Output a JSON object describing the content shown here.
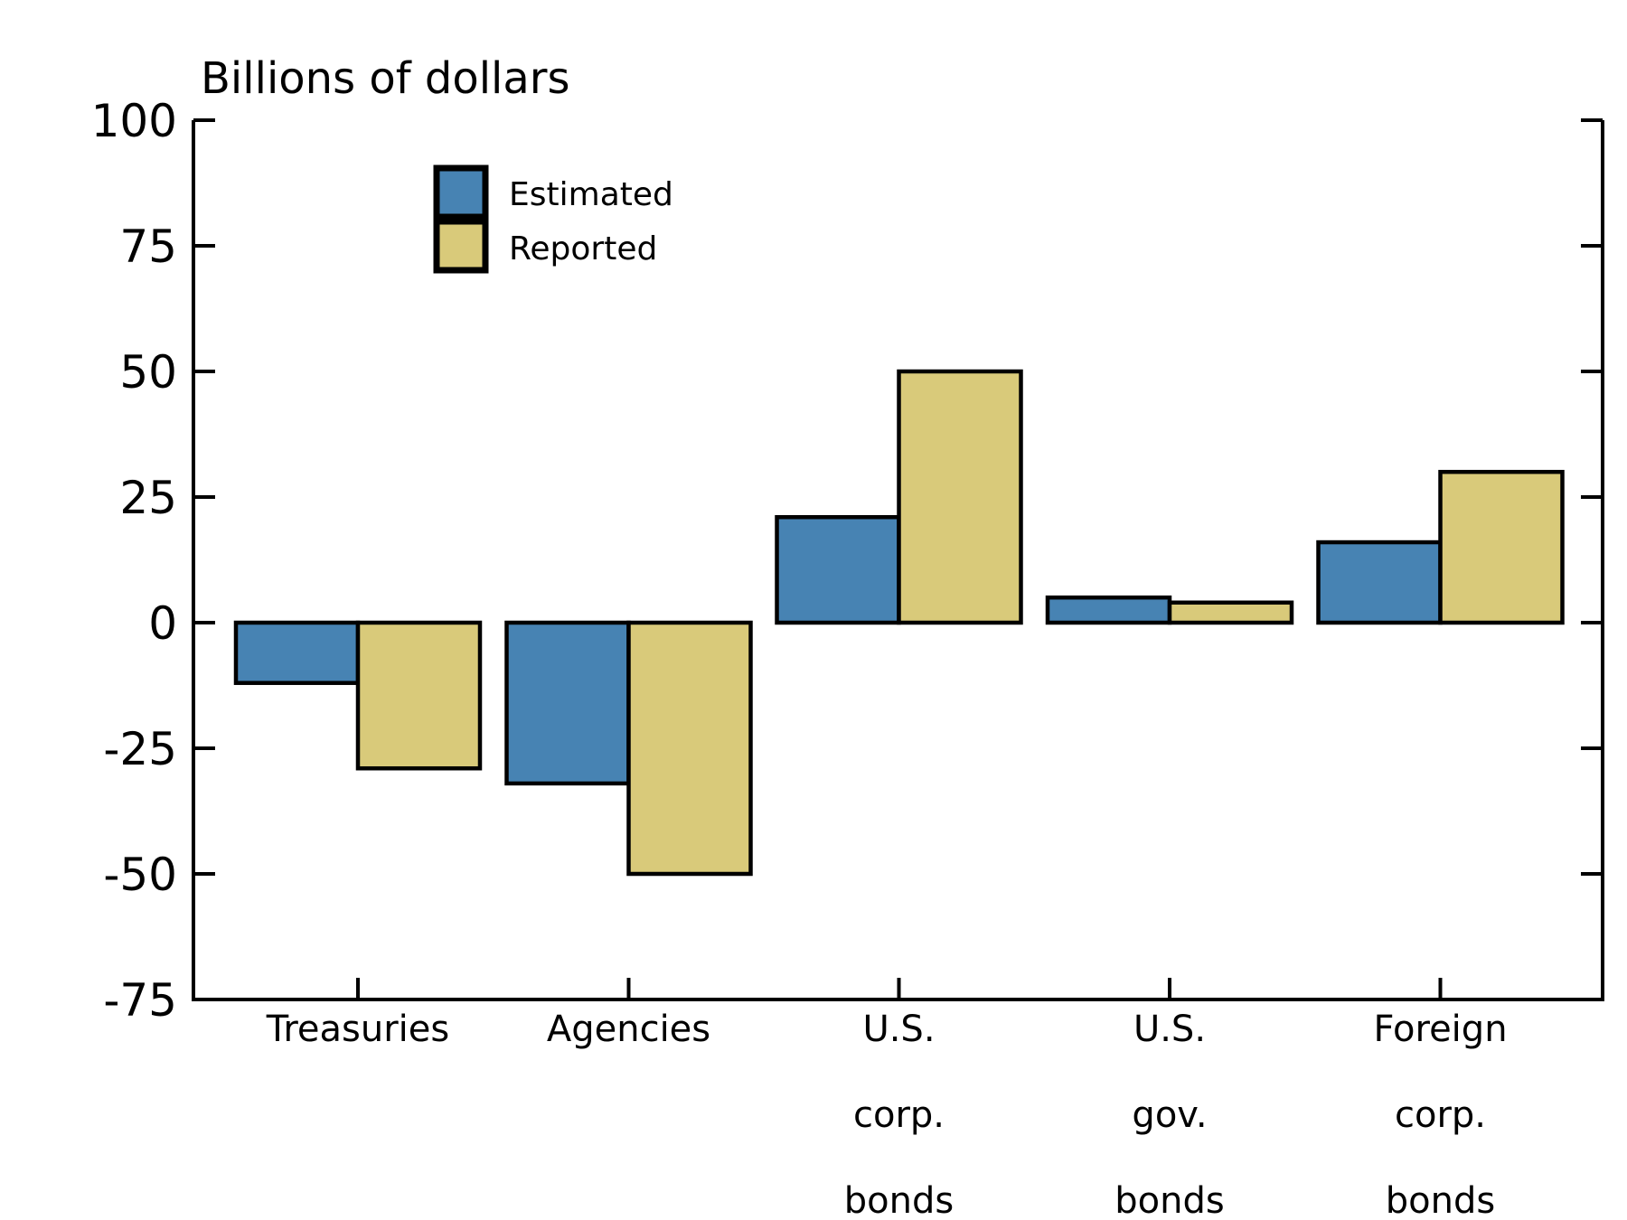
{
  "chart_data": {
    "type": "bar",
    "title": "Billions of dollars",
    "categories": [
      "Treasuries",
      "Agencies",
      "U.S. corp. bonds",
      "U.S. gov. bonds",
      "Foreign corp. bonds"
    ],
    "category_label_lines": [
      [
        "Treasuries"
      ],
      [
        "Agencies"
      ],
      [
        "U.S.",
        "corp.",
        "bonds"
      ],
      [
        "U.S.",
        "gov.",
        "bonds"
      ],
      [
        "Foreign",
        "corp.",
        "bonds"
      ]
    ],
    "series": [
      {
        "name": "Estimated",
        "color": "#4783B3",
        "values": [
          -12,
          -32,
          21,
          5,
          16
        ]
      },
      {
        "name": "Reported",
        "color": "#D9CA7A",
        "values": [
          -29,
          -50,
          50,
          4,
          30
        ]
      }
    ],
    "ylim": [
      -75,
      100
    ],
    "yticks": [
      100,
      75,
      50,
      25,
      0,
      -25,
      -50,
      -75
    ],
    "xlabel": "",
    "ylabel": "Billions of dollars",
    "grid": false,
    "legend": {
      "position": "upper-left-inside",
      "entries": [
        "Estimated",
        "Reported"
      ]
    },
    "bar_edge_color": "#000000",
    "axis_color": "#000000"
  }
}
